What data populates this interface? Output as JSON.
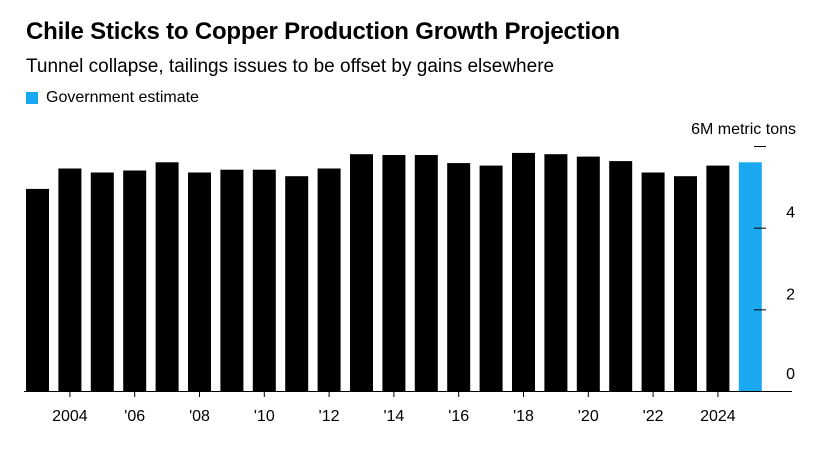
{
  "chart_data": {
    "type": "bar",
    "title": "Chile Sticks to Copper Production Growth Projection",
    "subtitle": "Tunnel collapse, tailings issues to be offset by gains elsewhere",
    "legend": [
      {
        "label": "Government estimate",
        "color": "#1aa9f0"
      }
    ],
    "unit_label": "6M metric tons",
    "ylim": [
      0,
      6
    ],
    "y_ticks": [
      0,
      2,
      4
    ],
    "x_ticks": [
      {
        "year": 2004,
        "label": "2004"
      },
      {
        "year": 2006,
        "label": "'06"
      },
      {
        "year": 2008,
        "label": "'08"
      },
      {
        "year": 2010,
        "label": "'10"
      },
      {
        "year": 2012,
        "label": "'12"
      },
      {
        "year": 2014,
        "label": "'14"
      },
      {
        "year": 2016,
        "label": "'16"
      },
      {
        "year": 2018,
        "label": "'18"
      },
      {
        "year": 2020,
        "label": "'20"
      },
      {
        "year": 2022,
        "label": "'22"
      },
      {
        "year": 2024,
        "label": "2024"
      }
    ],
    "categories": [
      2003,
      2004,
      2005,
      2006,
      2007,
      2008,
      2009,
      2010,
      2011,
      2012,
      2013,
      2014,
      2015,
      2016,
      2017,
      2018,
      2019,
      2020,
      2021,
      2022,
      2023,
      2024,
      2025
    ],
    "values": [
      4.95,
      5.45,
      5.35,
      5.4,
      5.6,
      5.35,
      5.42,
      5.42,
      5.26,
      5.45,
      5.8,
      5.78,
      5.78,
      5.58,
      5.52,
      5.83,
      5.8,
      5.74,
      5.63,
      5.35,
      5.26,
      5.52,
      5.6
    ],
    "estimate_from": 2025,
    "colors": {
      "actual": "#000000",
      "estimate": "#1aa9f0"
    }
  }
}
